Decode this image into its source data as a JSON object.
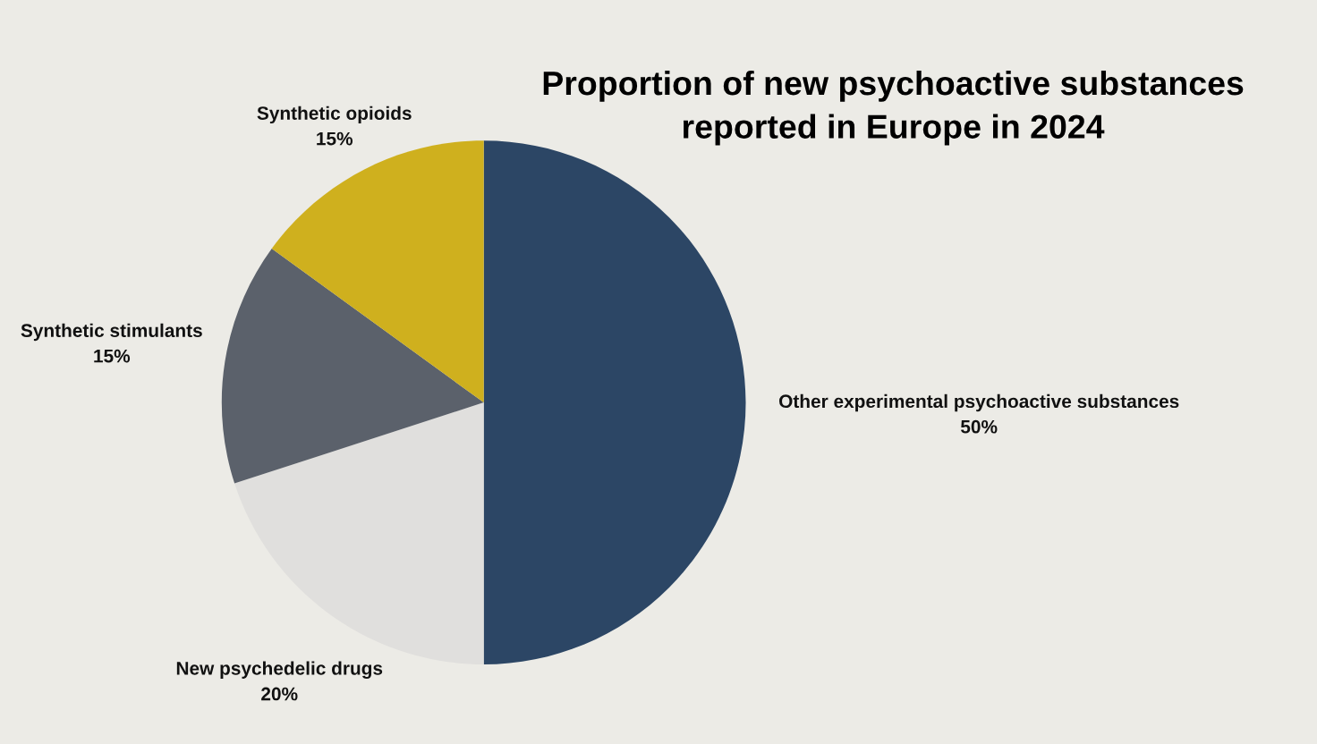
{
  "chart_data": {
    "type": "pie",
    "title": "Proportion of new psychoactive substances reported in Europe in 2024",
    "categories": [
      "Other experimental psychoactive substances",
      "New psychedelic drugs",
      "Synthetic stimulants",
      "Synthetic opioids"
    ],
    "values": [
      50,
      20,
      15,
      15
    ],
    "value_labels": [
      "50%",
      "20%",
      "15%",
      "15%"
    ],
    "colors": [
      "#2c4665",
      "#e0dfdd",
      "#5b616b",
      "#cfb01e"
    ],
    "legend": false
  }
}
